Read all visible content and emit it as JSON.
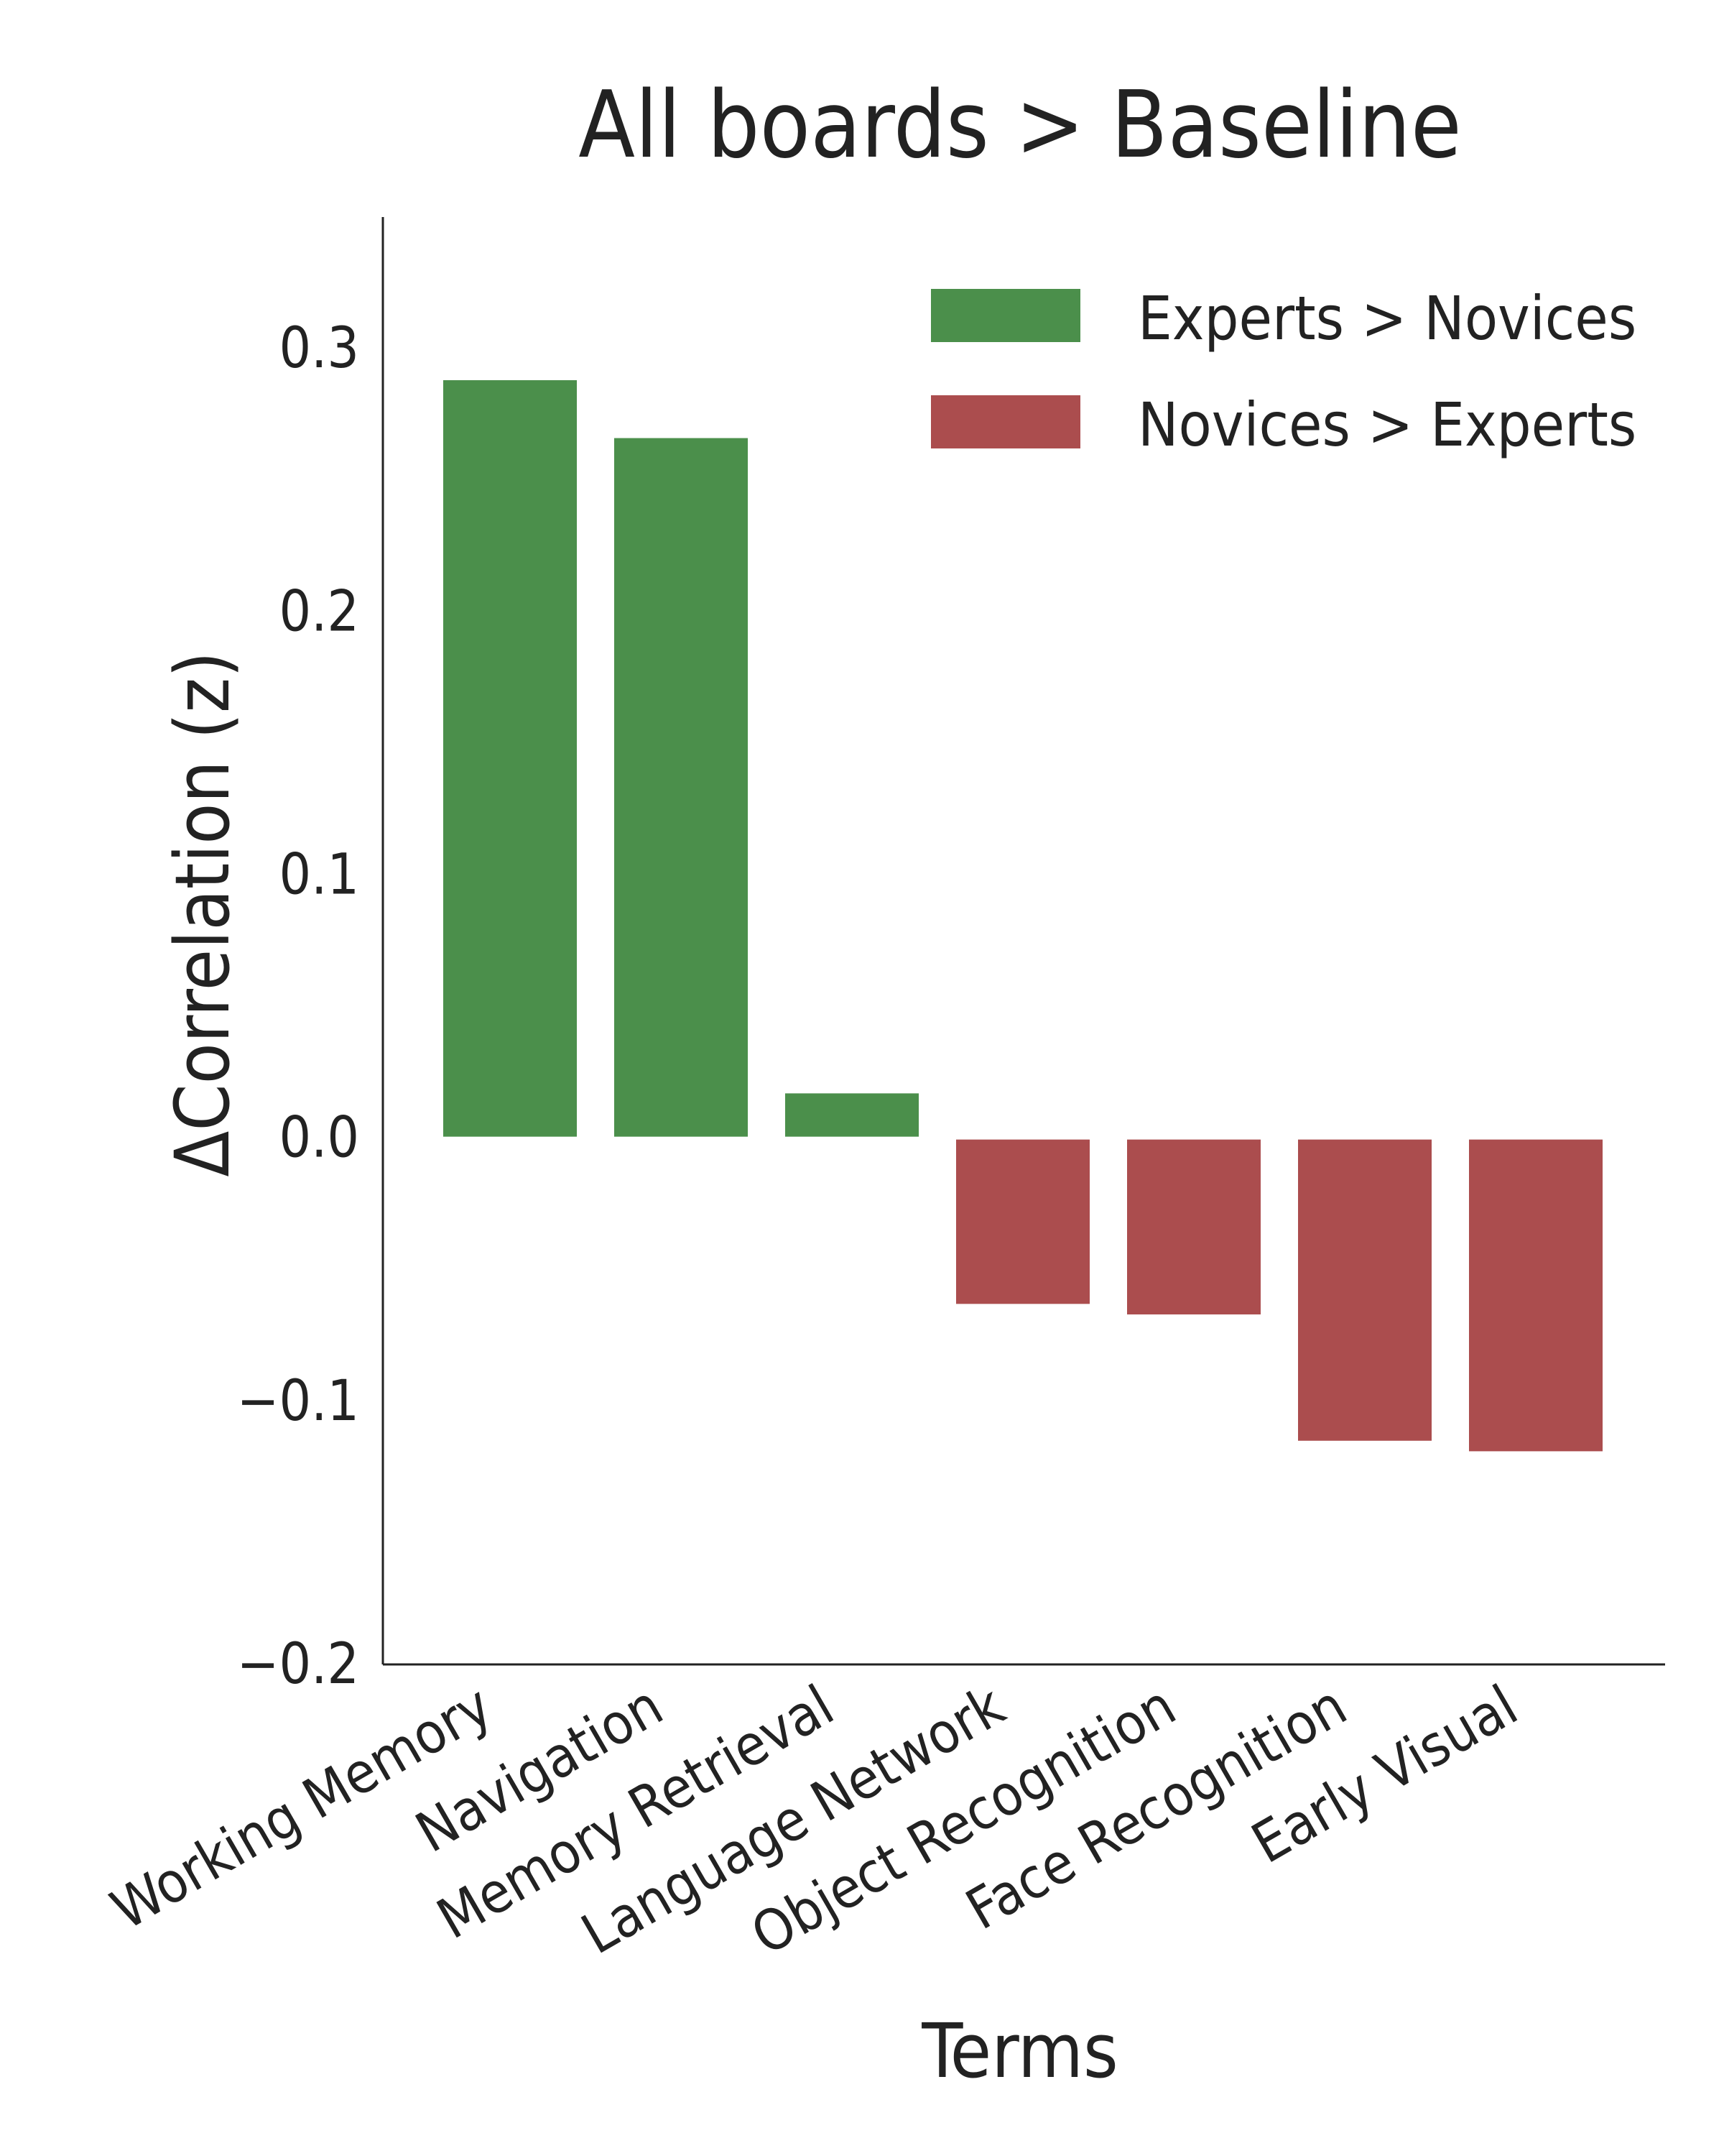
{
  "chart_data": {
    "type": "bar",
    "title": "All boards > Baseline",
    "xlabel": "Terms",
    "ylabel": "ΔCorrelation (z)",
    "categories": [
      "Working Memory",
      "Navigation",
      "Memory Retrieval",
      "Language Network",
      "Object Recognition",
      "Face Recognition",
      "Early Visual"
    ],
    "values": [
      0.288,
      0.266,
      0.017,
      -0.063,
      -0.067,
      -0.115,
      -0.119
    ],
    "ylim": [
      -0.2,
      0.35
    ],
    "yticks": [
      "0.3",
      "0.2",
      "0.1",
      "0.0",
      "−0.1",
      "−0.2"
    ],
    "ytick_values": [
      0.3,
      0.2,
      0.1,
      0.0,
      -0.1,
      -0.2
    ],
    "grid": false,
    "legend_position": "top-right",
    "legend": [
      {
        "label": "Experts > Novices",
        "color": "#4b8f4b"
      },
      {
        "label": "Novices > Experts",
        "color": "#ab4d4e"
      }
    ],
    "colors": {
      "positive": "#4b8f4b",
      "negative": "#ab4d4e"
    }
  }
}
